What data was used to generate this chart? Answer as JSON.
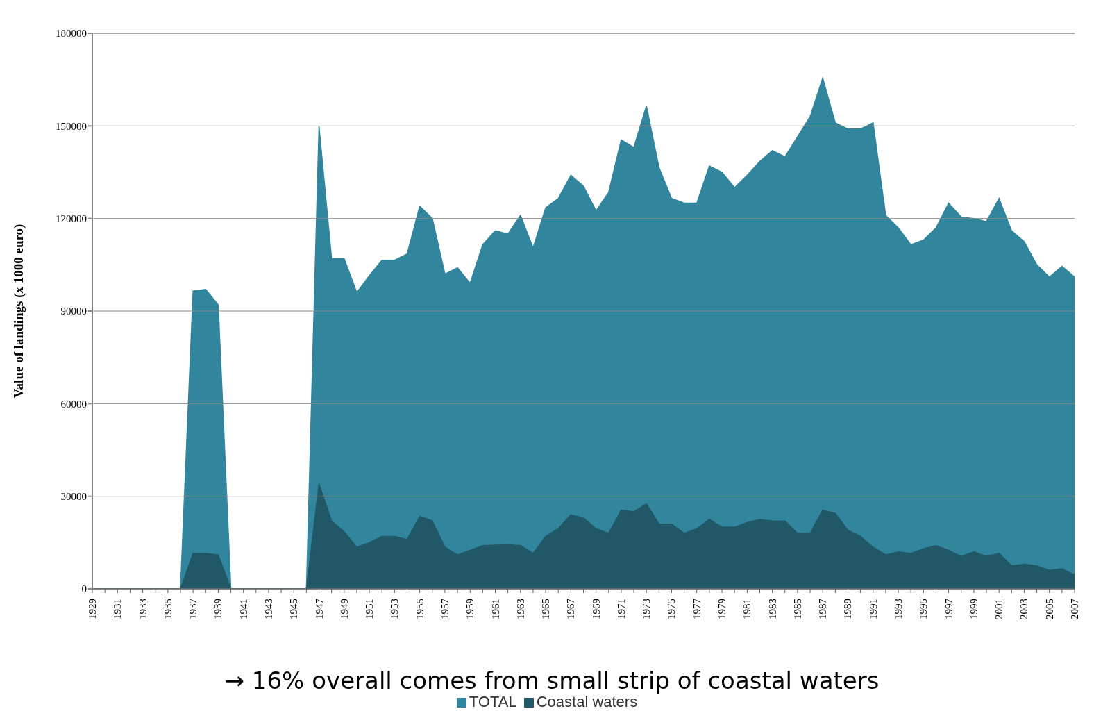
{
  "chart_data": {
    "type": "area",
    "ylabel": "Value of landings (x 1000 euro)",
    "annotations": [
      "→ 16% overall comes from small strip of coastal waters"
    ],
    "categories": [
      "1929",
      null,
      "1931",
      null,
      "1933",
      null,
      "1935",
      null,
      "1937",
      null,
      "1939",
      null,
      "1941",
      null,
      "1943",
      null,
      "1945",
      null,
      "1947",
      null,
      "1949",
      null,
      "1951",
      null,
      "1953",
      null,
      "1955",
      null,
      "1957",
      null,
      "1959",
      null,
      "1961",
      null,
      "1963",
      null,
      "1965",
      null,
      "1967",
      null,
      "1969",
      null,
      "1971",
      null,
      "1973",
      null,
      "1975",
      null,
      "1977",
      null,
      "1979",
      null,
      "1981",
      null,
      "1983",
      null,
      "1985",
      null,
      "1987",
      null,
      "1989",
      null,
      "1991",
      null,
      "1993",
      null,
      "1995",
      null,
      "1997",
      null,
      "1999",
      null,
      "2001",
      null,
      "2003",
      null,
      "2005",
      null,
      "2007"
    ],
    "series": [
      {
        "name": "TOTAL",
        "color": "#31859c",
        "values": [
          0,
          0,
          0,
          0,
          0,
          0,
          0,
          0,
          96500,
          97000,
          92000,
          0,
          0,
          0,
          0,
          0,
          0,
          0,
          150000,
          107000,
          107000,
          96000,
          101500,
          106500,
          106500,
          108500,
          124000,
          120000,
          102000,
          104000,
          99000,
          111500,
          116000,
          115000,
          121000,
          110500,
          123500,
          126500,
          134000,
          130500,
          122500,
          128500,
          145500,
          143000,
          156500,
          136500,
          126500,
          125000,
          125000,
          137000,
          135000,
          130000,
          134000,
          138500,
          142000,
          140000,
          146500,
          153000,
          165500,
          151000,
          149000,
          149000,
          151000,
          121000,
          117000,
          111500,
          113000,
          117000,
          125000,
          120500,
          120000,
          119000,
          126500,
          116000,
          112500,
          105000,
          101000,
          104500,
          101000
        ]
      },
      {
        "name": "Coastal waters",
        "color": "#215868",
        "values": [
          0,
          0,
          0,
          0,
          0,
          0,
          0,
          0,
          11500,
          11500,
          11000,
          0,
          0,
          0,
          0,
          0,
          0,
          0,
          34000,
          22000,
          18500,
          13500,
          15000,
          17000,
          17000,
          16000,
          23500,
          22000,
          13500,
          11000,
          12500,
          14000,
          14200,
          14300,
          14000,
          11500,
          17000,
          19500,
          24000,
          23000,
          19500,
          18000,
          25500,
          25000,
          27500,
          21000,
          21000,
          18000,
          19500,
          22500,
          20000,
          20000,
          21500,
          22500,
          22000,
          22000,
          18000,
          18000,
          25500,
          24500,
          19000,
          17000,
          13500,
          11000,
          12000,
          11500,
          13000,
          14000,
          12500,
          10500,
          12000,
          10500,
          11500,
          7500,
          8000,
          7500,
          6000,
          6500,
          4500
        ]
      }
    ],
    "ylim": [
      0,
      180000
    ],
    "yticks": [
      0,
      30000,
      60000,
      90000,
      120000,
      150000,
      180000
    ],
    "grid": "y",
    "legend": "bottom"
  }
}
